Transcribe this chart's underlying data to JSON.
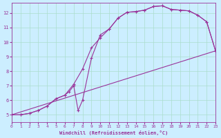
{
  "xlabel": "Windchill (Refroidissement éolien,°C)",
  "bg_color": "#cceeff",
  "grid_color": "#aaddcc",
  "line_color": "#993399",
  "xlim": [
    0,
    23
  ],
  "ylim": [
    4.5,
    12.7
  ],
  "xticks": [
    0,
    1,
    2,
    3,
    4,
    5,
    6,
    7,
    8,
    9,
    10,
    11,
    12,
    13,
    14,
    15,
    16,
    17,
    18,
    19,
    20,
    21,
    22,
    23
  ],
  "yticks": [
    5,
    6,
    7,
    8,
    9,
    10,
    11,
    12
  ],
  "curve1_x": [
    0,
    1,
    2,
    3,
    4,
    5,
    6,
    6.5,
    7,
    7.5,
    8,
    9,
    10,
    11,
    12,
    13,
    14,
    15,
    16,
    17,
    18,
    19,
    20,
    21,
    22,
    23
  ],
  "curve1_y": [
    5.0,
    5.0,
    5.1,
    5.3,
    5.6,
    6.1,
    6.35,
    6.6,
    7.0,
    5.3,
    6.0,
    8.9,
    10.5,
    10.9,
    11.65,
    12.05,
    12.1,
    12.2,
    12.45,
    12.5,
    12.25,
    12.2,
    12.15,
    11.85,
    11.4,
    9.4
  ],
  "curve2_x": [
    0,
    1,
    2,
    3,
    4,
    5,
    6,
    7,
    8,
    9,
    10,
    11,
    12,
    13,
    14,
    15,
    16,
    17,
    18,
    19,
    20,
    21,
    22,
    23
  ],
  "curve2_y": [
    5.0,
    5.0,
    5.1,
    5.3,
    5.6,
    6.1,
    6.35,
    7.1,
    8.15,
    9.6,
    10.3,
    10.9,
    11.65,
    12.05,
    12.1,
    12.2,
    12.45,
    12.5,
    12.25,
    12.2,
    12.15,
    11.85,
    11.4,
    9.4
  ],
  "curve3_x": [
    0,
    23
  ],
  "curve3_y": [
    5.0,
    9.4
  ],
  "marker": "+"
}
